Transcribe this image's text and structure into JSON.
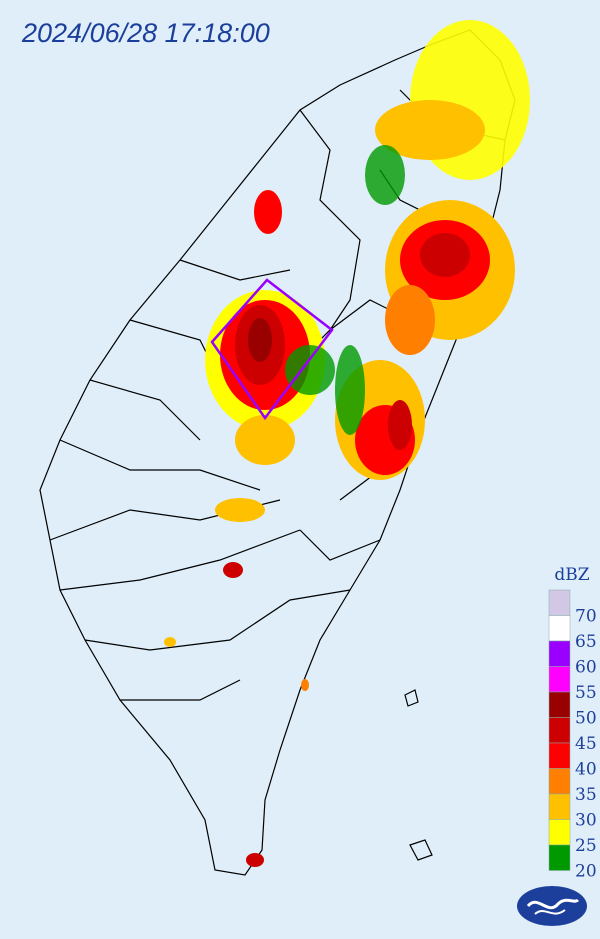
{
  "header": {
    "timestamp": "2024/06/28 17:18:00"
  },
  "legend": {
    "unit": "dBZ",
    "colors": [
      "#d2c8e6",
      "#ffffff",
      "#9a00ff",
      "#ff00ff",
      "#990000",
      "#cc0000",
      "#ff0000",
      "#ff8000",
      "#ffc000",
      "#ffff00",
      "#009900"
    ],
    "labels": [
      70,
      65,
      60,
      55,
      50,
      45,
      40,
      35,
      30,
      25,
      20
    ]
  }
}
